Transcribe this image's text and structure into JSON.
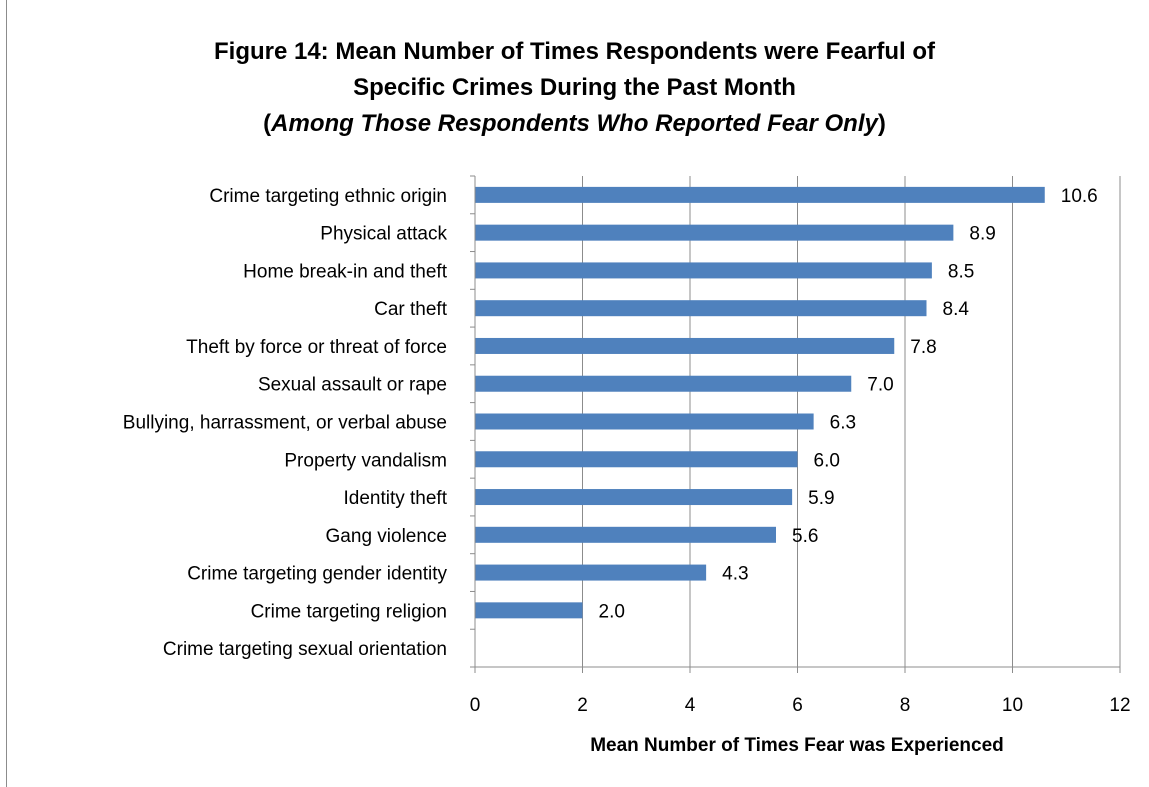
{
  "chart_data": {
    "type": "bar",
    "orientation": "horizontal",
    "title_line1": "Figure 14: Mean Number of Times Respondents were Fearful of",
    "title_line2": "Specific Crimes During the Past Month",
    "subtitle_open": "(",
    "subtitle_italic": "Among Those Respondents Who Reported Fear Only",
    "subtitle_close": ")",
    "xlabel": "Mean Number of Times Fear was Experienced",
    "ylabel": "",
    "xlim": [
      0,
      12
    ],
    "xticks": [
      "0",
      "2",
      "4",
      "6",
      "8",
      "10",
      "12"
    ],
    "grid": "vertical",
    "legend": "none",
    "bar_color": "#4f81bd",
    "categories": [
      "Crime targeting ethnic origin",
      "Physical attack",
      "Home break-in and theft",
      "Car theft",
      "Theft by force or threat of force",
      "Sexual assault or rape",
      "Bullying, harrassment, or  verbal abuse",
      "Property vandalism",
      "Identity theft",
      "Gang violence",
      "Crime targeting gender identity",
      "Crime targeting religion",
      "Crime targeting sexual orientation"
    ],
    "values": [
      10.6,
      8.9,
      8.5,
      8.4,
      7.8,
      7.0,
      6.3,
      6.0,
      5.9,
      5.6,
      4.3,
      2.0,
      null
    ],
    "value_labels": [
      "10.6",
      "8.9",
      "8.5",
      "8.4",
      "7.8",
      "7.0",
      "6.3",
      "6.0",
      "5.9",
      "5.6",
      "4.3",
      "2.0",
      ""
    ]
  }
}
